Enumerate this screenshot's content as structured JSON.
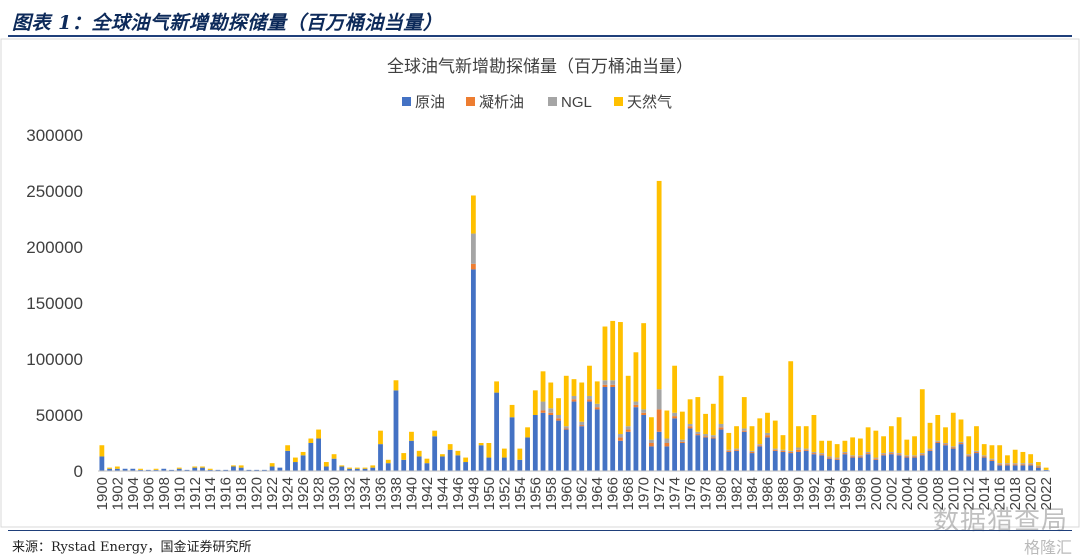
{
  "figure": {
    "title": "图表 1：全球油气新增勘探储量（百万桶油当量）",
    "source": "来源：Rystad Energy，国金证券研究所",
    "watermark": "数据猎查局",
    "watermark_logo": "格隆汇"
  },
  "chart_data": {
    "type": "bar",
    "stacked": true,
    "title": "全球油气新增勘探储量（百万桶油当量）",
    "xlabel": "",
    "ylabel": "",
    "ylim": [
      0,
      300000
    ],
    "yticks": [
      0,
      50000,
      100000,
      150000,
      200000,
      250000,
      300000
    ],
    "ytick_labels": [
      "0",
      "50000",
      "100000",
      "150000",
      "200000",
      "250000",
      "300000"
    ],
    "grid": false,
    "legend_position": "top-center",
    "x_start": 1900,
    "x_end": 2022,
    "xtick_labels": [
      "1900",
      "1902",
      "1904",
      "1906",
      "1908",
      "1910",
      "1912",
      "1914",
      "1916",
      "1918",
      "1920",
      "1922",
      "1924",
      "1926",
      "1928",
      "1930",
      "1932",
      "1934",
      "1936",
      "1938",
      "1940",
      "1942",
      "1944",
      "1946",
      "1948",
      "1950",
      "1952",
      "1954",
      "1956",
      "1958",
      "1960",
      "1962",
      "1964",
      "1966",
      "1968",
      "1970",
      "1972",
      "1974",
      "1976",
      "1978",
      "1980",
      "1982",
      "1984",
      "1986",
      "1988",
      "1990",
      "1992",
      "1994",
      "1996",
      "1998",
      "2000",
      "2002",
      "2004",
      "2006",
      "2008",
      "2010",
      "2012",
      "2014",
      "2016",
      "2018",
      "2020",
      "2022"
    ],
    "series": [
      {
        "name": "原油",
        "color": "#4472c4",
        "values": [
          13000,
          2000,
          2000,
          2000,
          2000,
          1000,
          1000,
          1000,
          2000,
          1000,
          2000,
          1000,
          3000,
          3000,
          1000,
          1000,
          1000,
          4000,
          3000,
          1000,
          1000,
          1000,
          4000,
          3000,
          18000,
          8000,
          14000,
          25000,
          29000,
          4000,
          11000,
          4000,
          2000,
          2000,
          2000,
          3000,
          24000,
          7000,
          72000,
          10000,
          27000,
          13000,
          7000,
          31000,
          13000,
          19000,
          14000,
          8000,
          180000,
          23000,
          12000,
          70000,
          12000,
          48000,
          10000,
          30000,
          50000,
          52000,
          50000,
          45000,
          37000,
          62000,
          40000,
          62000,
          55000,
          75000,
          75000,
          27000,
          35000,
          57000,
          50000,
          22000,
          35000,
          22000,
          47000,
          25000,
          38000,
          32000,
          30000,
          29000,
          37000,
          17000,
          18000,
          35000,
          16000,
          22000,
          30000,
          18000,
          17000,
          16000,
          17000,
          18000,
          15000,
          14000,
          11000,
          10000,
          15000,
          12000,
          12000,
          15000,
          10000,
          14000,
          15000,
          14000,
          12000,
          12000,
          14000,
          18000,
          25000,
          23000,
          20000,
          24000,
          13000,
          16000,
          12000,
          9000,
          5000,
          5000,
          5000,
          5000,
          5000,
          3000,
          1000
        ]
      },
      {
        "name": "凝析油",
        "color": "#ed7d31",
        "values": [
          0,
          0,
          0,
          0,
          0,
          0,
          0,
          0,
          0,
          0,
          0,
          0,
          0,
          0,
          0,
          0,
          0,
          0,
          0,
          0,
          0,
          0,
          0,
          0,
          0,
          0,
          0,
          0,
          0,
          0,
          0,
          0,
          0,
          0,
          0,
          0,
          0,
          0,
          0,
          0,
          0,
          0,
          0,
          0,
          0,
          0,
          0,
          0,
          5000,
          0,
          0,
          0,
          0,
          0,
          0,
          0,
          0,
          2000,
          2000,
          2000,
          1000,
          2000,
          1000,
          2000,
          2000,
          2000,
          2000,
          3000,
          2000,
          2000,
          2000,
          3000,
          20000,
          3000,
          2000,
          1000,
          2000,
          1000,
          1000,
          1000,
          2000,
          1000,
          1000,
          1000,
          1000,
          1000,
          2000,
          1000,
          1000,
          1000,
          2000,
          1000,
          1000,
          1000,
          1000,
          1000,
          1000,
          1000,
          1000,
          1000,
          1000,
          1000,
          1000,
          1000,
          1000,
          1000,
          1000,
          1000,
          1000,
          1000,
          1000,
          1000,
          1000,
          1000,
          1000,
          1000,
          1000,
          1000,
          1000,
          1000,
          1000,
          1000,
          0
        ]
      },
      {
        "name": "NGL",
        "color": "#a5a5a5",
        "values": [
          0,
          0,
          0,
          0,
          0,
          0,
          0,
          0,
          0,
          0,
          0,
          0,
          0,
          0,
          0,
          0,
          0,
          0,
          0,
          0,
          0,
          0,
          0,
          0,
          0,
          0,
          0,
          0,
          0,
          0,
          0,
          0,
          0,
          0,
          0,
          0,
          0,
          0,
          0,
          0,
          0,
          0,
          0,
          0,
          0,
          0,
          0,
          0,
          27000,
          0,
          0,
          0,
          0,
          0,
          0,
          0,
          0,
          8000,
          4000,
          3000,
          2000,
          3000,
          3000,
          3000,
          3000,
          4000,
          4000,
          3000,
          3000,
          3000,
          3000,
          3000,
          18000,
          4000,
          3000,
          2000,
          2000,
          2000,
          2000,
          2000,
          3000,
          1000,
          1000,
          2000,
          1000,
          1000,
          2000,
          1000,
          1000,
          1000,
          2000,
          1000,
          1000,
          1000,
          1000,
          1000,
          1000,
          1000,
          1000,
          1000,
          1000,
          1000,
          1000,
          1000,
          1000,
          1000,
          1000,
          1000,
          1000,
          1000,
          1000,
          1000,
          1000,
          1000,
          1000,
          1000,
          1000,
          1000,
          1000,
          1000,
          1000,
          1000,
          0
        ]
      },
      {
        "name": "天然气",
        "color": "#ffc000",
        "values": [
          10000,
          1000,
          2000,
          0,
          0,
          1000,
          0,
          1000,
          0,
          0,
          1000,
          0,
          1000,
          1000,
          1000,
          0,
          0,
          1000,
          2000,
          0,
          0,
          0,
          3000,
          0,
          5000,
          4000,
          3000,
          4000,
          8000,
          4000,
          4000,
          1000,
          1000,
          1000,
          1000,
          2000,
          12000,
          3000,
          9000,
          6000,
          8000,
          5000,
          4000,
          5000,
          2000,
          5000,
          4000,
          4000,
          34000,
          2000,
          13000,
          10000,
          8000,
          11000,
          10000,
          9000,
          22000,
          27000,
          23000,
          15000,
          45000,
          15000,
          35000,
          27000,
          20000,
          48000,
          53000,
          100000,
          45000,
          44000,
          77000,
          20000,
          186000,
          25000,
          42000,
          25000,
          22000,
          31000,
          18000,
          28000,
          43000,
          15000,
          20000,
          28000,
          22000,
          23000,
          18000,
          25000,
          13000,
          80000,
          19000,
          20000,
          33000,
          11000,
          14000,
          12000,
          10000,
          16000,
          15000,
          22000,
          24000,
          15000,
          23000,
          32000,
          14000,
          17000,
          57000,
          23000,
          23000,
          14000,
          30000,
          20000,
          16000,
          22000,
          10000,
          12000,
          16000,
          7000,
          12000,
          10000,
          8000,
          3000,
          2000
        ]
      }
    ]
  }
}
